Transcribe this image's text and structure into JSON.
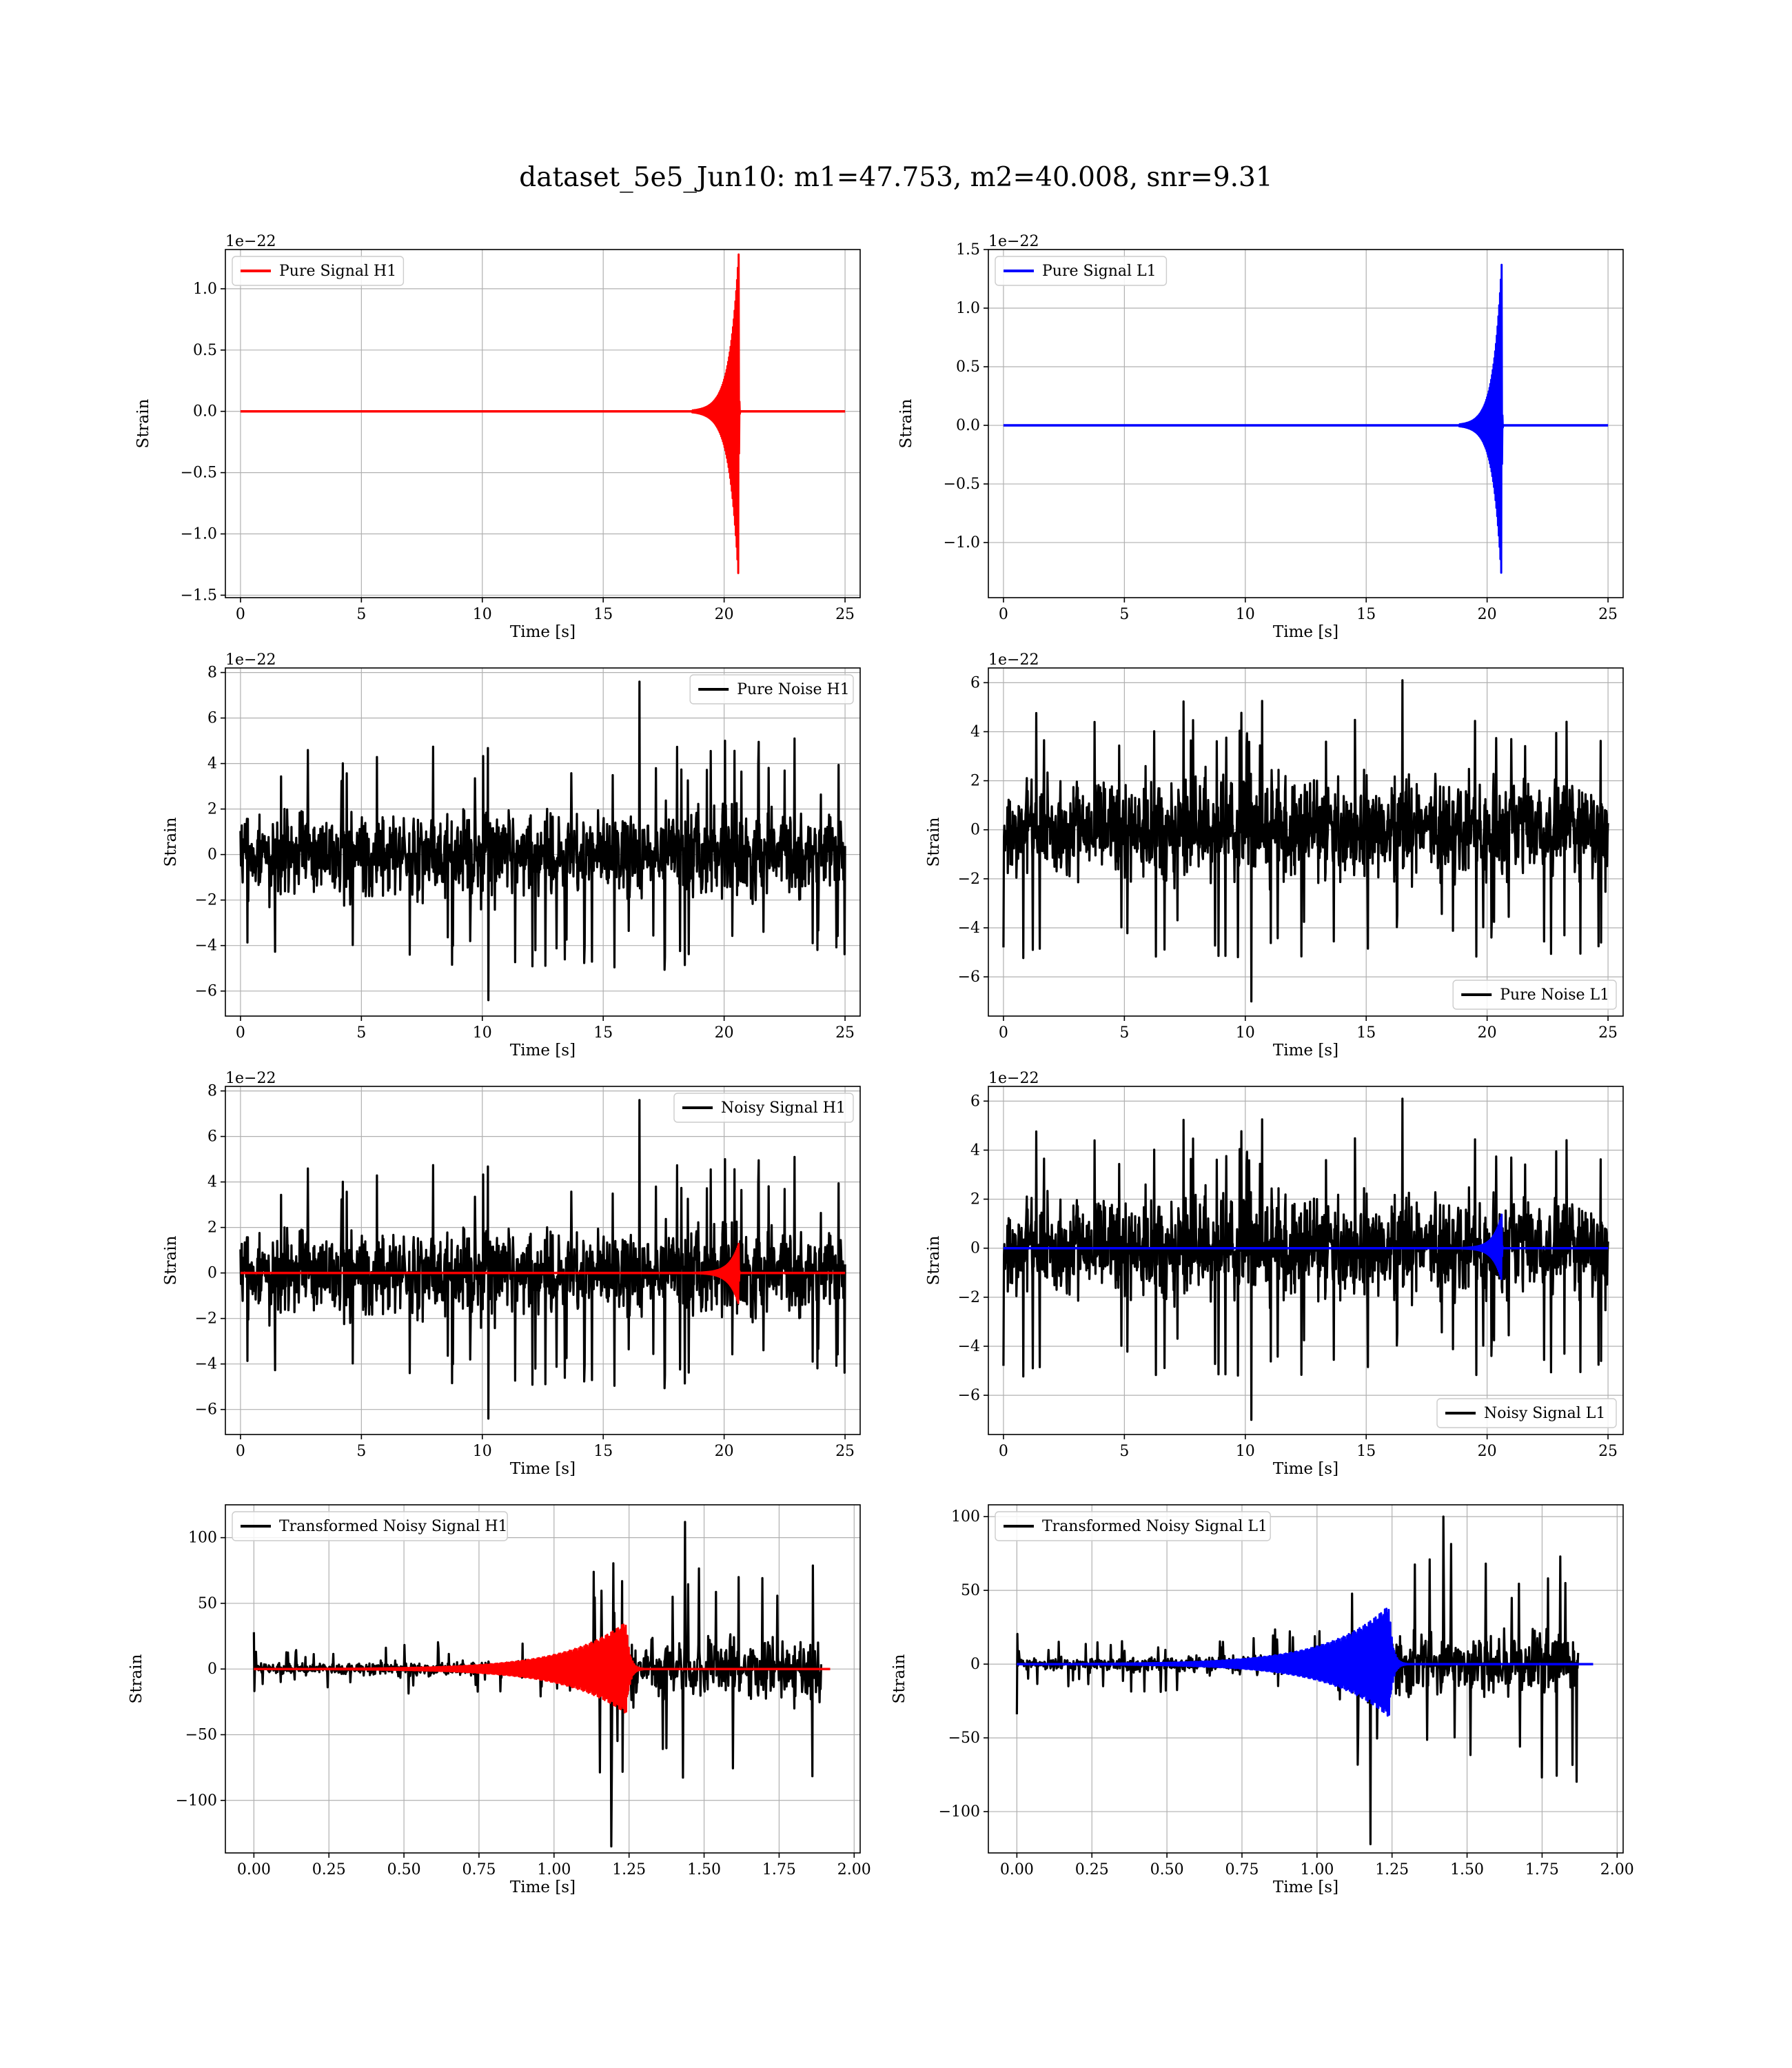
{
  "figure": {
    "suptitle": "dataset_5e5_Jun10: m1=47.753, m2=40.008, snr=9.31"
  },
  "colors": {
    "h1_signal": "#ff0000",
    "l1_signal": "#0000ff",
    "noise": "#000000",
    "grid": "#b0b0b0"
  },
  "chart_data": [
    {
      "type": "line",
      "id": "pure-signal-h1",
      "xlabel": "Time [s]",
      "ylabel": "Strain",
      "offset_text": "1e−22",
      "xlim": [
        -0.625,
        25.625
      ],
      "ylim": [
        -1.52,
        1.32
      ],
      "xticks": [
        0,
        5,
        10,
        15,
        20,
        25
      ],
      "xtick_labels": [
        "0",
        "5",
        "10",
        "15",
        "20",
        "25"
      ],
      "yticks": [
        -1.5,
        -1.0,
        -0.5,
        0.0,
        0.5,
        1.0
      ],
      "ytick_labels": [
        "−1.5",
        "−1.0",
        "−0.5",
        "0.0",
        "0.5",
        "1.0"
      ],
      "legend": {
        "loc": "upper left"
      },
      "series": [
        {
          "name": "Pure Signal H1",
          "color": "#ff0000",
          "kind": "chirp",
          "t0": 0,
          "t1": 25,
          "merger": 20.6,
          "peak_pos": 1.28,
          "peak_neg": -1.38,
          "pre": 0.6
        }
      ]
    },
    {
      "type": "line",
      "id": "pure-signal-l1",
      "xlabel": "Time [s]",
      "ylabel": "Strain",
      "offset_text": "1e−22",
      "xlim": [
        -0.625,
        25.625
      ],
      "ylim": [
        -1.47,
        1.5
      ],
      "xticks": [
        0,
        5,
        10,
        15,
        20,
        25
      ],
      "xtick_labels": [
        "0",
        "5",
        "10",
        "15",
        "20",
        "25"
      ],
      "yticks": [
        -1.0,
        -0.5,
        0.0,
        0.5,
        1.0,
        1.5
      ],
      "ytick_labels": [
        "−1.0",
        "−0.5",
        "0.0",
        "0.5",
        "1.0",
        "1.5"
      ],
      "legend": {
        "loc": "upper left"
      },
      "series": [
        {
          "name": "Pure Signal L1",
          "color": "#0000ff",
          "kind": "chirp",
          "t0": 0,
          "t1": 25,
          "merger": 20.6,
          "peak_pos": 1.37,
          "peak_neg": -1.32,
          "pre": 0.55
        }
      ]
    },
    {
      "type": "line",
      "id": "pure-noise-h1",
      "xlabel": "Time [s]",
      "ylabel": "Strain",
      "offset_text": "1e−22",
      "xlim": [
        -0.625,
        25.625
      ],
      "ylim": [
        -7.1,
        8.2
      ],
      "xticks": [
        0,
        5,
        10,
        15,
        20,
        25
      ],
      "xtick_labels": [
        "0",
        "5",
        "10",
        "15",
        "20",
        "25"
      ],
      "yticks": [
        -6,
        -4,
        -2,
        0,
        2,
        4,
        6,
        8
      ],
      "ytick_labels": [
        "−6",
        "−4",
        "−2",
        "0",
        "2",
        "4",
        "6",
        "8"
      ],
      "legend": {
        "loc": "upper right"
      },
      "series": [
        {
          "name": "Pure Noise H1",
          "color": "#000000",
          "kind": "noise",
          "t0": 0,
          "t1": 25,
          "band": 3.2,
          "max": 7.6,
          "min": -6.4,
          "seed": 11
        }
      ]
    },
    {
      "type": "line",
      "id": "pure-noise-l1",
      "xlabel": "Time [s]",
      "ylabel": "Strain",
      "offset_text": "1e−22",
      "xlim": [
        -0.625,
        25.625
      ],
      "ylim": [
        -7.6,
        6.6
      ],
      "xticks": [
        0,
        5,
        10,
        15,
        20,
        25
      ],
      "xtick_labels": [
        "0",
        "5",
        "10",
        "15",
        "20",
        "25"
      ],
      "yticks": [
        -6,
        -4,
        -2,
        0,
        2,
        4,
        6
      ],
      "ytick_labels": [
        "−6",
        "−4",
        "−2",
        "0",
        "2",
        "4",
        "6"
      ],
      "legend": {
        "loc": "lower right"
      },
      "series": [
        {
          "name": "Pure Noise L1",
          "color": "#000000",
          "kind": "noise",
          "t0": 0,
          "t1": 25,
          "band": 3.4,
          "max": 6.1,
          "min": -7.0,
          "seed": 23
        }
      ]
    },
    {
      "type": "line",
      "id": "noisy-signal-h1",
      "xlabel": "Time [s]",
      "ylabel": "Strain",
      "offset_text": "1e−22",
      "xlim": [
        -0.625,
        25.625
      ],
      "ylim": [
        -7.1,
        8.2
      ],
      "xticks": [
        0,
        5,
        10,
        15,
        20,
        25
      ],
      "xtick_labels": [
        "0",
        "5",
        "10",
        "15",
        "20",
        "25"
      ],
      "yticks": [
        -6,
        -4,
        -2,
        0,
        2,
        4,
        6,
        8
      ],
      "ytick_labels": [
        "−6",
        "−4",
        "−2",
        "0",
        "2",
        "4",
        "6",
        "8"
      ],
      "legend": {
        "loc": "upper right"
      },
      "series": [
        {
          "name": "Noisy Signal H1",
          "color": "#000000",
          "kind": "noise",
          "t0": 0,
          "t1": 25,
          "band": 3.2,
          "max": 7.6,
          "min": -6.4,
          "seed": 11
        },
        {
          "color": "#ff0000",
          "kind": "chirp",
          "t0": 0,
          "t1": 25,
          "merger": 20.6,
          "peak_pos": 1.28,
          "peak_neg": -1.38,
          "pre": 0.6
        }
      ]
    },
    {
      "type": "line",
      "id": "noisy-signal-l1",
      "xlabel": "Time [s]",
      "ylabel": "Strain",
      "offset_text": "1e−22",
      "xlim": [
        -0.625,
        25.625
      ],
      "ylim": [
        -7.6,
        6.6
      ],
      "xticks": [
        0,
        5,
        10,
        15,
        20,
        25
      ],
      "xtick_labels": [
        "0",
        "5",
        "10",
        "15",
        "20",
        "25"
      ],
      "yticks": [
        -6,
        -4,
        -2,
        0,
        2,
        4,
        6
      ],
      "ytick_labels": [
        "−6",
        "−4",
        "−2",
        "0",
        "2",
        "4",
        "6"
      ],
      "legend": {
        "loc": "lower right"
      },
      "series": [
        {
          "name": "Noisy Signal L1",
          "color": "#000000",
          "kind": "noise",
          "t0": 0,
          "t1": 25,
          "band": 3.4,
          "max": 6.1,
          "min": -7.0,
          "seed": 23
        },
        {
          "color": "#0000ff",
          "kind": "chirp",
          "t0": 0,
          "t1": 25,
          "merger": 20.6,
          "peak_pos": 1.37,
          "peak_neg": -1.32,
          "pre": 0.55
        }
      ]
    },
    {
      "type": "line",
      "id": "transformed-noisy-signal-h1",
      "xlabel": "Time [s]",
      "ylabel": "Strain",
      "offset_text": "",
      "xlim": [
        -0.095,
        2.02
      ],
      "ylim": [
        -140,
        125
      ],
      "xticks": [
        0,
        0.25,
        0.5,
        0.75,
        1.0,
        1.25,
        1.5,
        1.75,
        2.0
      ],
      "xtick_labels": [
        "0.00",
        "0.25",
        "0.50",
        "0.75",
        "1.00",
        "1.25",
        "1.50",
        "1.75",
        "2.00"
      ],
      "yticks": [
        -100,
        -50,
        0,
        50,
        100
      ],
      "ytick_labels": [
        "−100",
        "−50",
        "0",
        "50",
        "100"
      ],
      "legend": {
        "loc": "upper left"
      },
      "series": [
        {
          "name": "Transformed Noisy Signal H1",
          "color": "#000000",
          "kind": "whitened",
          "t0": 0,
          "t1": 1.89,
          "jump": 1.13,
          "low_amp": 9,
          "high_amp": 38,
          "max": 112,
          "min": -135,
          "seed": 41,
          "spike0": 28
        },
        {
          "color": "#ff0000",
          "kind": "wchirp",
          "t0": 0,
          "t1": 1.92,
          "merger": 1.24,
          "peak_pos": 36,
          "peak_neg": -34,
          "pre": 0.32
        }
      ]
    },
    {
      "type": "line",
      "id": "transformed-noisy-signal-l1",
      "xlabel": "Time [s]",
      "ylabel": "Strain",
      "offset_text": "",
      "xlim": [
        -0.095,
        2.02
      ],
      "ylim": [
        -128,
        108
      ],
      "xticks": [
        0,
        0.25,
        0.5,
        0.75,
        1.0,
        1.25,
        1.5,
        1.75,
        2.0
      ],
      "xtick_labels": [
        "0.00",
        "0.25",
        "0.50",
        "0.75",
        "1.00",
        "1.25",
        "1.50",
        "1.75",
        "2.00"
      ],
      "yticks": [
        -100,
        -50,
        0,
        50,
        100
      ],
      "ytick_labels": [
        "−100",
        "−50",
        "0",
        "50",
        "100"
      ],
      "legend": {
        "loc": "upper left"
      },
      "series": [
        {
          "name": "Transformed Noisy Signal L1",
          "color": "#000000",
          "kind": "whitened",
          "t0": 0,
          "t1": 1.87,
          "jump": 1.1,
          "low_amp": 9,
          "high_amp": 36,
          "max": 100,
          "min": -122,
          "seed": 57,
          "spike0": -34
        },
        {
          "color": "#0000ff",
          "kind": "wchirp",
          "t0": 0,
          "t1": 1.92,
          "merger": 1.24,
          "peak_pos": 40,
          "peak_neg": -36,
          "pre": 0.32
        }
      ]
    }
  ]
}
